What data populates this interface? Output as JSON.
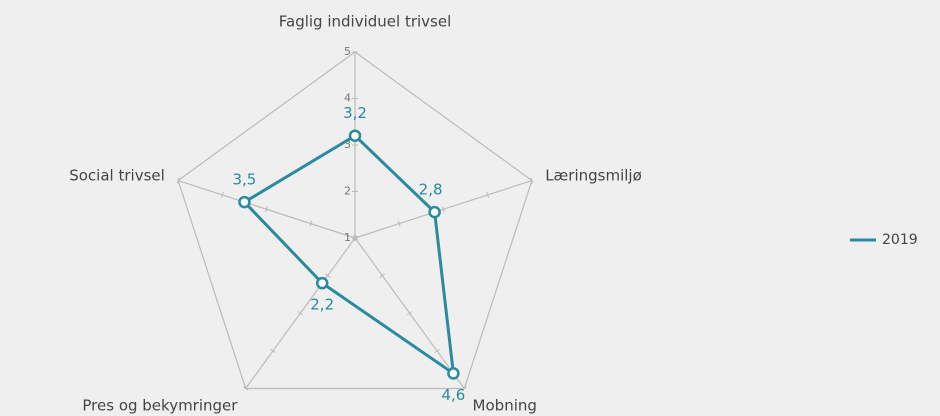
{
  "chart_data": {
    "type": "radar",
    "categories": [
      "Faglig individuel trivsel",
      "Læringsmiljø",
      "Mobning",
      "Pres og bekymringer",
      "Social trivsel"
    ],
    "series": [
      {
        "name": "2019",
        "color": "#2a8a9e",
        "values": [
          3.2,
          2.8,
          4.6,
          2.2,
          3.5
        ],
        "value_labels": [
          "3,2",
          "2,8",
          "4,6",
          "2,2",
          "3,5"
        ]
      }
    ],
    "ylim": [
      1,
      5
    ],
    "yticks": [
      1,
      2,
      3,
      4,
      5
    ],
    "legend": "right"
  }
}
